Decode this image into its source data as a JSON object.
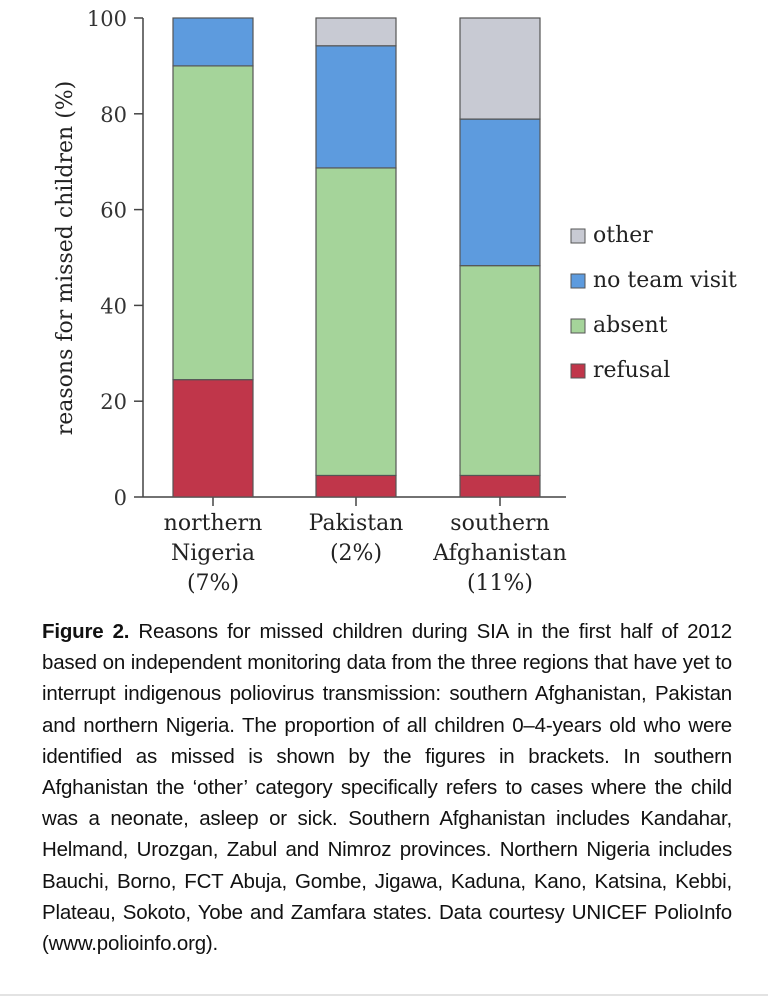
{
  "chart_data": {
    "type": "bar",
    "stacked": true,
    "ylabel": "reasons for missed children (%)",
    "ylim": [
      0,
      100
    ],
    "yticks": [
      0,
      20,
      40,
      60,
      80,
      100
    ],
    "categories": [
      {
        "lines": [
          "northern",
          "Nigeria",
          "(7%)"
        ]
      },
      {
        "lines": [
          "Pakistan",
          "(2%)"
        ]
      },
      {
        "lines": [
          "southern",
          "Afghanistan",
          "(11%)"
        ]
      }
    ],
    "series": [
      {
        "name": "refusal",
        "color": "#c0364a",
        "values": [
          24.5,
          4.5,
          4.5
        ]
      },
      {
        "name": "absent",
        "color": "#a5d49a",
        "values": [
          65.5,
          64.2,
          43.8
        ]
      },
      {
        "name": "no team visit",
        "color": "#5d9bde",
        "values": [
          10.0,
          25.5,
          30.6
        ]
      },
      {
        "name": "other",
        "color": "#c8cad3",
        "values": [
          0.0,
          5.8,
          21.1
        ]
      }
    ],
    "legend_position": "right",
    "legend_order": [
      "other",
      "no team visit",
      "absent",
      "refusal"
    ]
  },
  "caption": {
    "label": "Figure 2.",
    "text": "Reasons for missed children during SIA in the first half of 2012 based on independent monitoring data from the three regions that have yet to interrupt indigenous poliovirus transmission: southern Afghanistan, Pakistan and northern Nigeria. The proportion of all children 0–4-years old who were identified as missed is shown by the figures in brackets. In southern Afghanistan the ‘other’ category specifically refers to cases where the child was a neonate, asleep or sick. Southern Afghanistan includes Kandahar, Helmand, Urozgan, Zabul and Nimroz provinces. Northern Nigeria includes Bauchi, Borno, FCT Abuja, Gombe, Jigawa, Kaduna, Kano, Katsina, Kebbi, Plateau, Sokoto, Yobe and Zamfara states. Data courtesy UNICEF PolioInfo (www.polioinfo.org)."
  }
}
